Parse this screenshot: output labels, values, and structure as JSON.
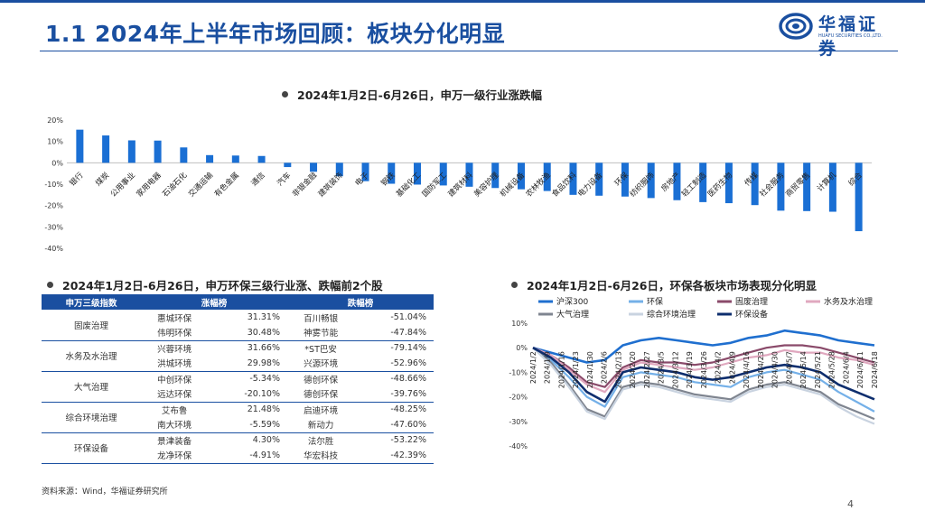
{
  "header": {
    "title": "1.1 2024年上半年市场回顾：板块分化明显",
    "logo_cn": "华福证券",
    "logo_en": "HUAFU SECURITIES CO.,LTD."
  },
  "section1": {
    "title": "2024年1月2日-6月26日，申万一级行业涨跌幅"
  },
  "section2": {
    "title": "2024年1月2日-6月26日，申万环保三级行业涨、跌幅前2个股"
  },
  "section3": {
    "title": "2024年1月2日-6月26日，环保各板块市场表现分化明显"
  },
  "chart_data": [
    {
      "type": "bar",
      "categories": [
        "银行",
        "煤炭",
        "公用事业",
        "家用电器",
        "石油石化",
        "交通运输",
        "有色金属",
        "通信",
        "汽车",
        "非银金融",
        "建筑装饰",
        "电子",
        "钢铁",
        "基础化工",
        "国防军工",
        "建筑材料",
        "美容护理",
        "机械设备",
        "农林牧渔",
        "食品饮料",
        "电力设备",
        "环保",
        "纺织服饰",
        "房地产",
        "轻工制造",
        "医药生物",
        "传媒",
        "社会服务",
        "商贸零售",
        "计算机",
        "综合"
      ],
      "values": [
        15.5,
        12.8,
        10.5,
        10.4,
        7.2,
        3.6,
        3.4,
        3.2,
        -2.0,
        -4.2,
        -6.3,
        -8.6,
        -9.8,
        -10.2,
        -10.6,
        -11.2,
        -11.8,
        -12.4,
        -13.2,
        -15.0,
        -15.4,
        -15.8,
        -16.5,
        -17.5,
        -18.4,
        -18.9,
        -19.8,
        -22.4,
        -22.6,
        -22.9,
        -32.0
      ],
      "yticks": [
        "20%",
        "10%",
        "0%",
        "-10%",
        "-20%",
        "-30%",
        "-40%"
      ],
      "ylim": [
        -40,
        20
      ],
      "color": "#1a6fd4"
    },
    {
      "type": "line",
      "x": [
        "2024/1/2",
        "2024/1/11",
        "2024/1/19",
        "2024/1/29",
        "2024/2/6",
        "2024/2/20",
        "2024/2/28",
        "2024/3/7",
        "2024/3/15",
        "2024/3/25",
        "2024/4/2",
        "2024/4/11",
        "2024/4/19",
        "2024/4/29",
        "2024/5/9",
        "2024/5/17",
        "2024/5/27",
        "2024/6/4",
        "2024/6/12",
        "2024/6/20"
      ],
      "xticks": [
        "2024/1/2",
        "2024/1/9",
        "2024/1/16",
        "2024/1/23",
        "2024/1/30",
        "2024/2/6",
        "2024/2/13",
        "2024/2/20",
        "2024/2/27",
        "2024/3/5",
        "2024/3/12",
        "2024/3/19",
        "2024/3/26",
        "2024/4/2",
        "2024/4/9",
        "2024/4/16",
        "2024/4/23",
        "2024/4/30",
        "2024/5/7",
        "2024/5/14",
        "2024/5/21",
        "2024/5/28",
        "2024/6/4",
        "2024/6/11",
        "2024/6/18"
      ],
      "yticks": [
        "10%",
        "0%",
        "-10%",
        "-20%",
        "-30%",
        "-40%"
      ],
      "ylim": [
        -40,
        10
      ],
      "series": [
        {
          "name": "沪深300",
          "color": "#1f6fcf",
          "values": [
            0,
            -2,
            -4,
            -6,
            -5,
            1,
            3,
            4,
            3,
            2,
            1,
            2,
            4,
            5,
            7,
            6,
            5,
            3,
            2,
            1
          ]
        },
        {
          "name": "环保",
          "color": "#74b0e8",
          "values": [
            0,
            -5,
            -12,
            -20,
            -24,
            -12,
            -10,
            -11,
            -12,
            -14,
            -15,
            -16,
            -12,
            -10,
            -9,
            -11,
            -13,
            -18,
            -22,
            -26
          ]
        },
        {
          "name": "固废治理",
          "color": "#8a4a6a",
          "values": [
            0,
            -3,
            -8,
            -14,
            -16,
            -8,
            -5,
            -6,
            -6,
            -7,
            -6,
            -4,
            -2,
            0,
            1,
            1,
            0,
            -2,
            -4,
            -6
          ]
        },
        {
          "name": "水务及水治理",
          "color": "#e0a8bf",
          "values": [
            0,
            -3,
            -9,
            -15,
            -18,
            -9,
            -6,
            -7,
            -8,
            -9,
            -8,
            -6,
            -4,
            -3,
            -1,
            -2,
            -2,
            -4,
            -5,
            -7
          ]
        },
        {
          "name": "大气治理",
          "color": "#7f8590",
          "values": [
            0,
            -6,
            -15,
            -25,
            -28,
            -16,
            -14,
            -15,
            -17,
            -19,
            -20,
            -21,
            -17,
            -15,
            -14,
            -16,
            -18,
            -23,
            -26,
            -29
          ]
        },
        {
          "name": "综合环境治理",
          "color": "#c9d3e0",
          "values": [
            0,
            -7,
            -16,
            -26,
            -29,
            -17,
            -15,
            -16,
            -18,
            -20,
            -21,
            -22,
            -18,
            -16,
            -15,
            -17,
            -19,
            -24,
            -28,
            -31
          ]
        },
        {
          "name": "环保设备",
          "color": "#0e2e6e",
          "values": [
            0,
            -4,
            -10,
            -18,
            -22,
            -10,
            -8,
            -9,
            -10,
            -12,
            -13,
            -12,
            -10,
            -8,
            -7,
            -8,
            -10,
            -15,
            -18,
            -21
          ]
        }
      ]
    }
  ],
  "table": {
    "headers": [
      "申万三级指数",
      "涨幅榜",
      "",
      "跌幅榜",
      ""
    ],
    "groups": [
      {
        "category": "固废治理",
        "rows": [
          [
            "惠城环保",
            "31.31%",
            "百川畅银",
            "-51.04%"
          ],
          [
            "伟明环保",
            "30.48%",
            "神雾节能",
            "-47.84%"
          ]
        ]
      },
      {
        "category": "水务及水治理",
        "rows": [
          [
            "兴蓉环境",
            "31.66%",
            "*ST巴安",
            "-79.14%"
          ],
          [
            "洪城环境",
            "29.98%",
            "兴源环境",
            "-52.96%"
          ]
        ]
      },
      {
        "category": "大气治理",
        "rows": [
          [
            "中创环保",
            "-5.34%",
            "德创环保",
            "-48.66%"
          ],
          [
            "远达环保",
            "-20.10%",
            "德创环保",
            "-39.76%"
          ]
        ]
      },
      {
        "category": "综合环境治理",
        "rows": [
          [
            "艾布鲁",
            "21.48%",
            "启迪环境",
            "-48.25%"
          ],
          [
            "南大环境",
            "-5.59%",
            "新动力",
            "-47.60%"
          ]
        ]
      },
      {
        "category": "环保设备",
        "rows": [
          [
            "景津装备",
            "4.30%",
            "法尔胜",
            "-53.22%"
          ],
          [
            "龙净环保",
            "-4.91%",
            "华宏科技",
            "-42.39%"
          ]
        ]
      }
    ]
  },
  "footer": {
    "source": "资料来源：Wind，华福证券研究所",
    "page": "4"
  }
}
